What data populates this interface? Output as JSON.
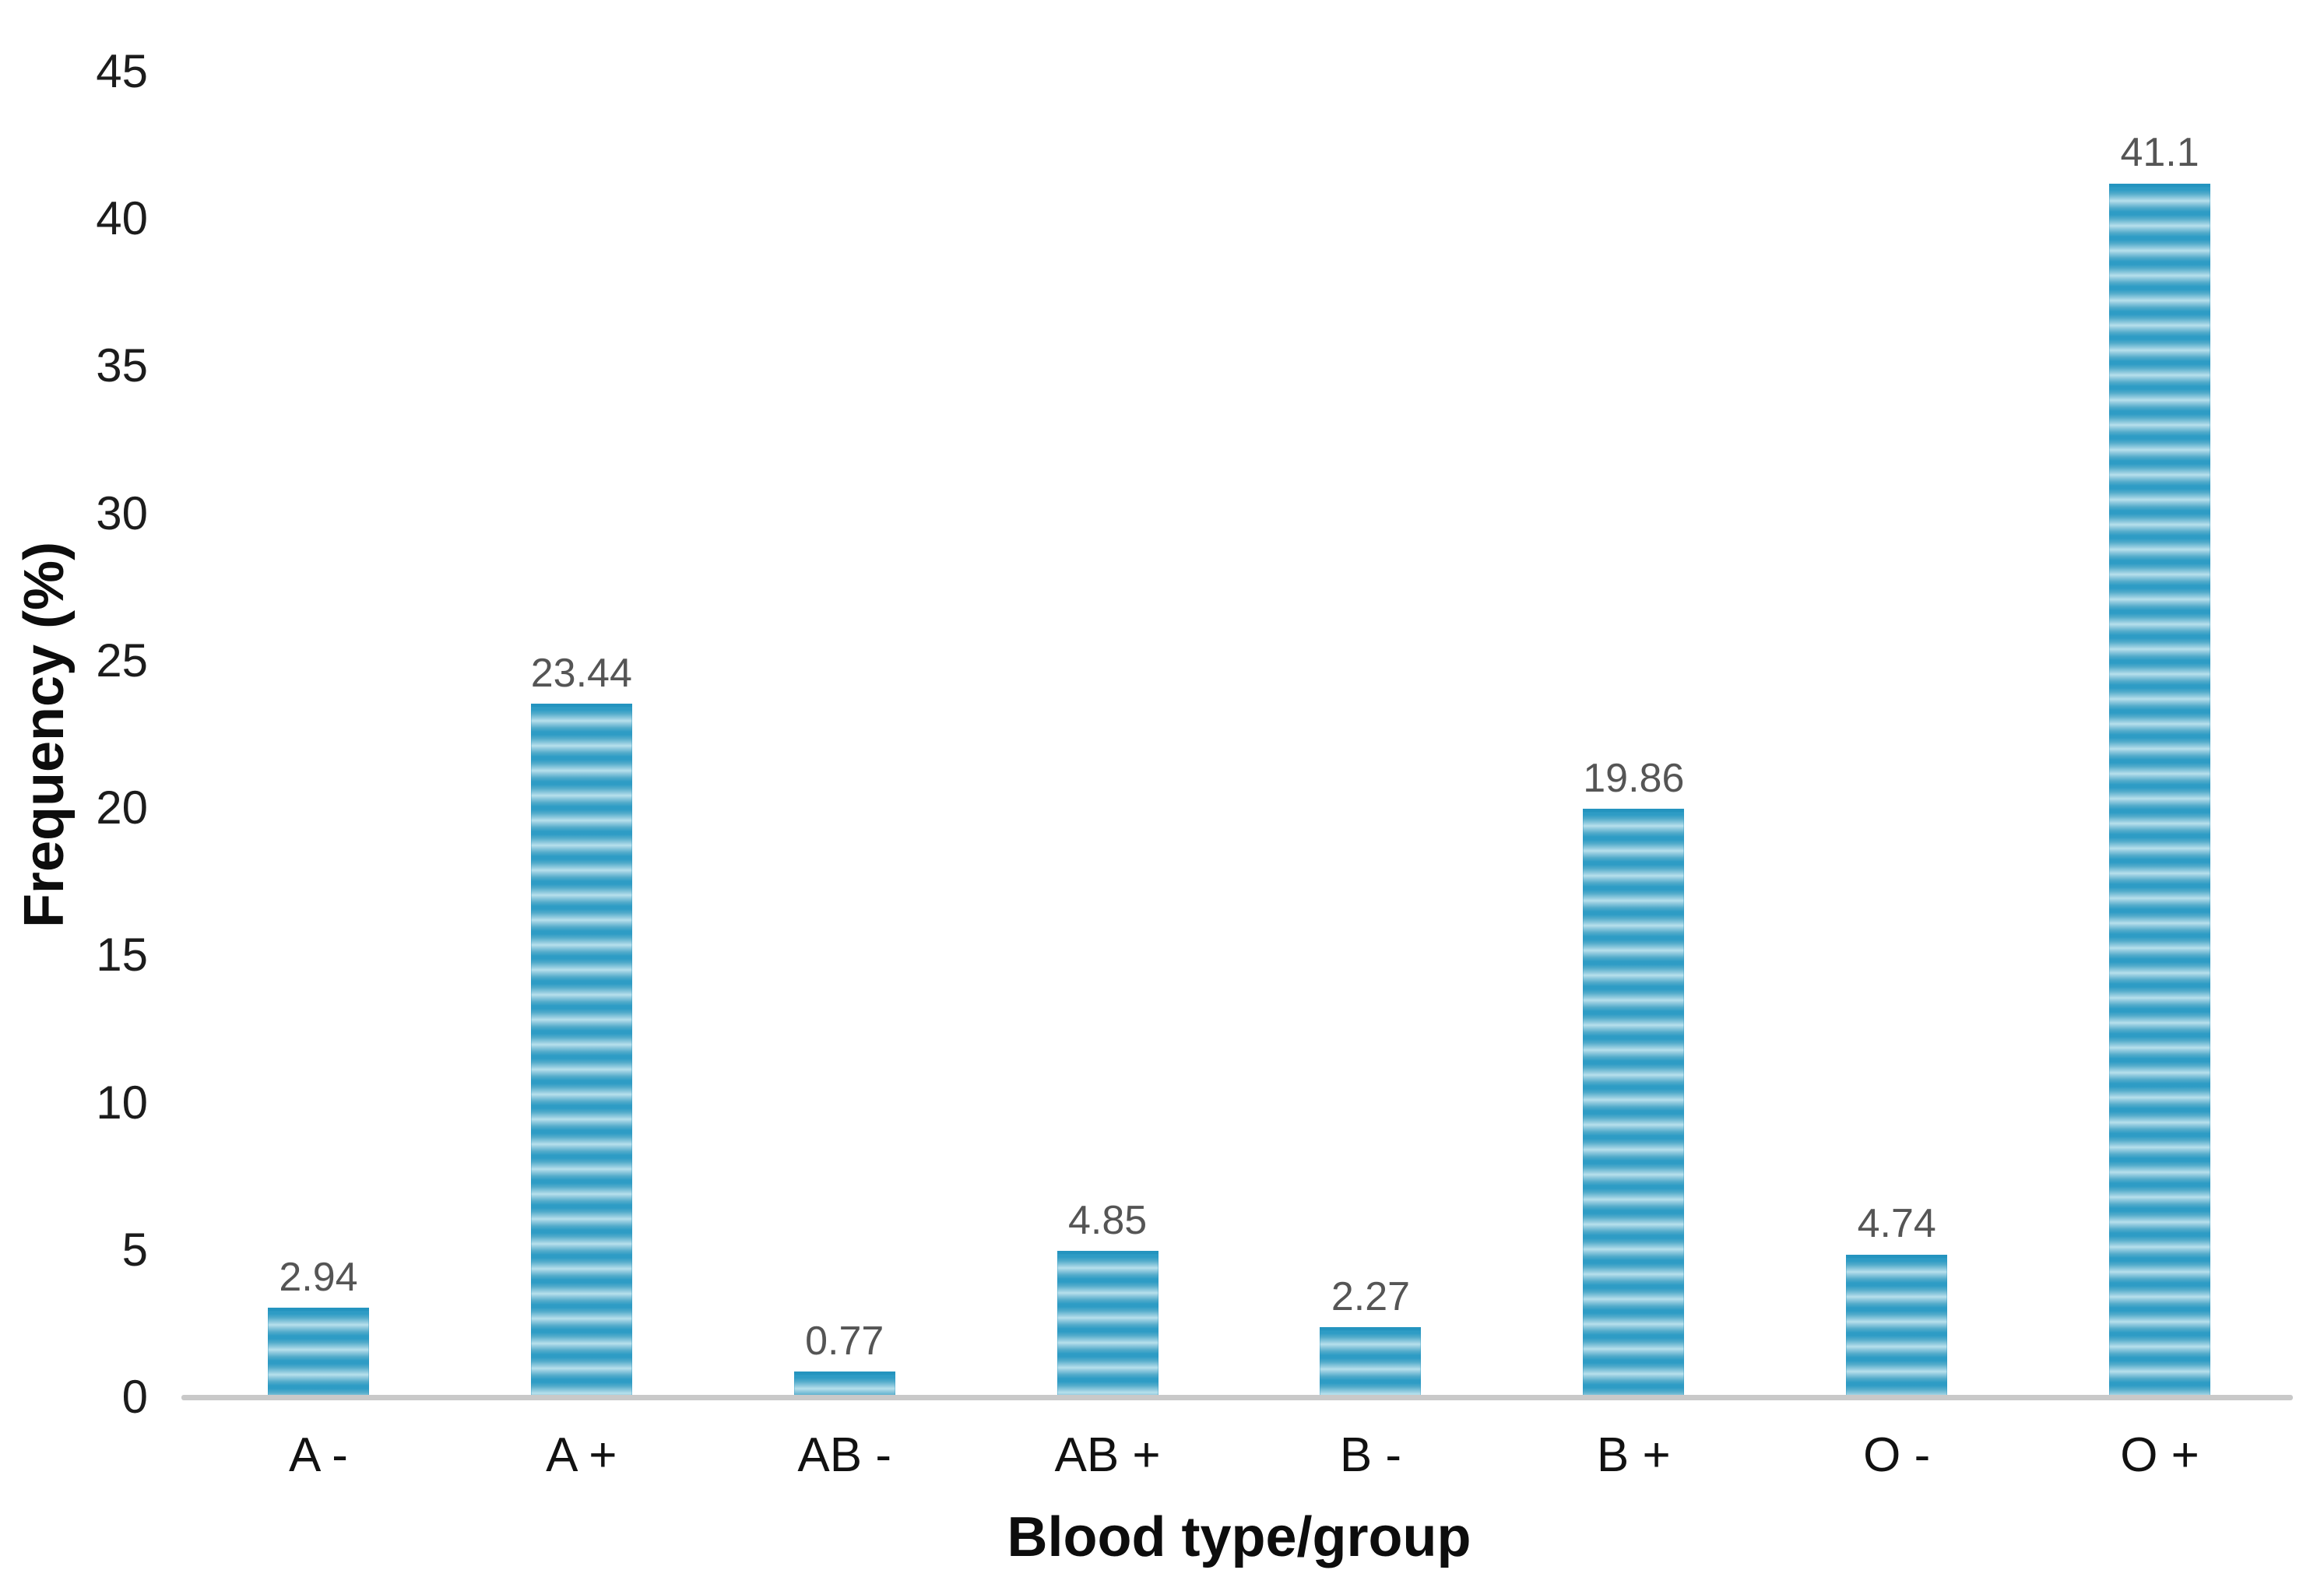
{
  "chart_data": {
    "type": "bar",
    "title": "",
    "xlabel": "Blood type/group",
    "ylabel": "Frequency (%)",
    "categories": [
      "A -",
      "A +",
      "AB -",
      "AB +",
      "B -",
      "B +",
      "O -",
      "O +"
    ],
    "values": [
      2.94,
      23.44,
      0.77,
      4.85,
      2.27,
      19.86,
      4.74,
      41.1
    ],
    "value_labels": [
      "2.94",
      "23.44",
      "0.77",
      "4.85",
      "2.27",
      "19.86",
      "4.74",
      "41.1"
    ],
    "ylim": [
      0,
      45
    ],
    "yticks": [
      0,
      5,
      10,
      15,
      20,
      25,
      30,
      35,
      40,
      45
    ],
    "grid": "off",
    "legend": "none",
    "colors": {
      "bar_stripe_dark": "#2e9cc5",
      "bar_stripe_mid": "#54accb",
      "bar_stripe_light": "#b7e0ec",
      "axis_line": "#c9c9c9",
      "value_label_text": "#555555",
      "tick_label_text": "#1c1c1c",
      "axis_title_text": "#0d0d0d"
    }
  }
}
